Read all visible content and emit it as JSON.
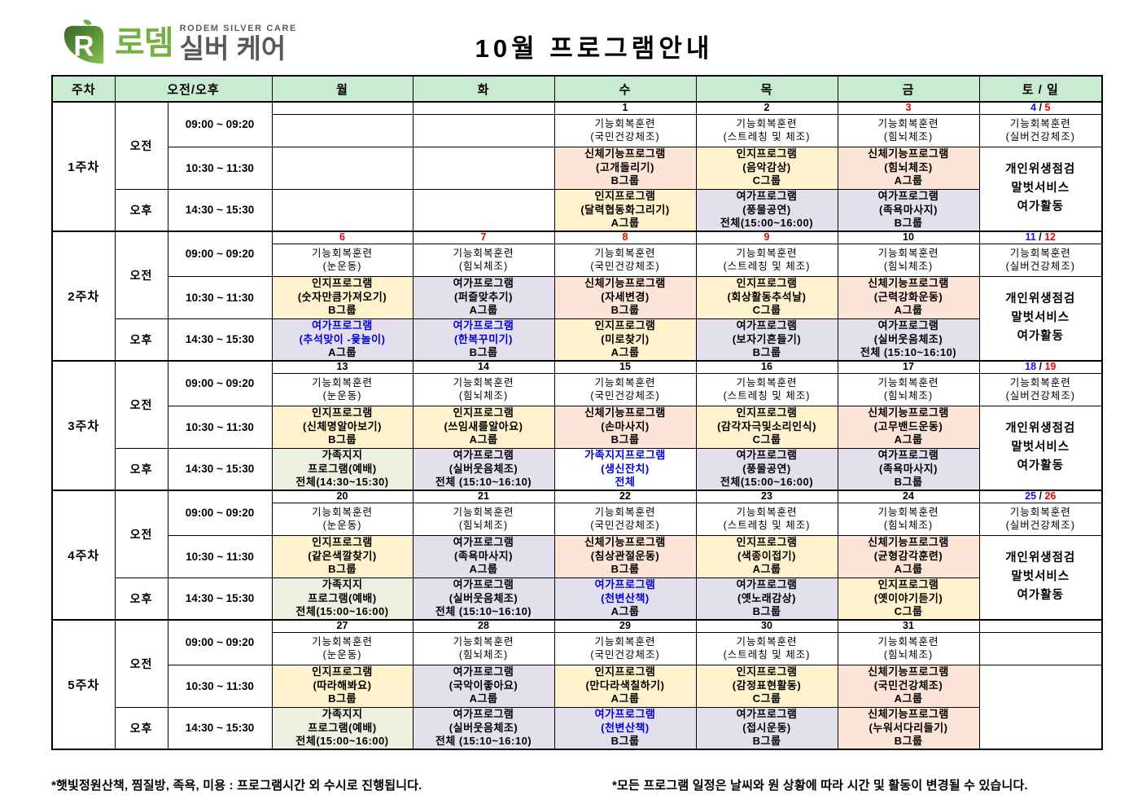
{
  "page": {
    "logo": {
      "kr_green": "로뎀",
      "kr_gray": "실버 케어",
      "en": "RODEM SILVER CARE"
    },
    "title": "10월 프로그램안내",
    "footnotes": {
      "left": "*햇빛정원산책, 찜질방, 족욕, 미용 : 프로그램시간 외 수시로 진행됩니다.",
      "right": "*모든 프로그램 일정은 날씨와 원 상황에 따라 시간 및 활동이 변경될 수 있습니다."
    }
  },
  "colors": {
    "header_bg": "#C8EBD2",
    "yellow": "#FFF2CC",
    "peach": "#FCE4D6",
    "purple": "#E4DFEC",
    "green": "#EBF1DE",
    "date_red": "#EE0000",
    "date_blue": "#1212EE",
    "program_blue": "#0000DD",
    "logo_green": "#76B043",
    "logo_gray": "#58595B"
  },
  "schedule": {
    "header": {
      "week": "주차",
      "ampm": "오전/오후",
      "days": [
        "월",
        "화",
        "수",
        "목",
        "금",
        "토 / 일"
      ]
    },
    "ampm": {
      "am": "오전",
      "pm": "오후"
    },
    "times": [
      "09:00 ~ 09:20",
      "10:30 ~ 11:30",
      "14:30 ~ 15:30"
    ],
    "weeks": [
      {
        "label": "1주차",
        "dates": [
          {
            "t": ""
          },
          {
            "t": ""
          },
          {
            "t": "1"
          },
          {
            "t": "2"
          },
          {
            "t": "3",
            "c": "red"
          }
        ],
        "weekend_date": {
          "sat": "4",
          "sun": "5"
        },
        "r1": [
          null,
          null,
          {
            "lines": [
              "기능회복훈련",
              "(국민건강체조)"
            ]
          },
          {
            "lines": [
              "기능회복훈련",
              "(스트레칭 및 체조)"
            ]
          },
          {
            "lines": [
              "기능회복훈련",
              "(힘뇌체조)"
            ]
          }
        ],
        "r2": [
          null,
          null,
          {
            "bg": "peach",
            "lines": [
              "신체기능프로그램",
              "(고개돌리기)",
              "B그룹"
            ]
          },
          {
            "bg": "yellow",
            "lines": [
              "인지프로그램",
              "(음악감상)",
              "C그룹"
            ]
          },
          {
            "bg": "peach",
            "lines": [
              "신체기능프로그램",
              "(힘뇌체조)",
              "A그룹"
            ]
          }
        ],
        "r3": [
          null,
          null,
          {
            "bg": "yellow",
            "lines": [
              "인지프로그램",
              "(달력협동화그리기)",
              "A그룹"
            ]
          },
          {
            "bg": "purple",
            "lines": [
              "여가프로그램",
              "(풍물공연)",
              "전체(15:00~16:00)"
            ]
          },
          {
            "bg": "purple",
            "lines": [
              "여가프로그램",
              "(족욕마사지)",
              "B그룹"
            ]
          }
        ],
        "weekend": {
          "ex": [
            "기능회복훈련",
            "(실버건강체조)"
          ],
          "merged": [
            "개인위생점검",
            "말벗서비스",
            "여가활동"
          ]
        }
      },
      {
        "label": "2주차",
        "dates": [
          {
            "t": "6",
            "c": "red"
          },
          {
            "t": "7",
            "c": "red"
          },
          {
            "t": "8",
            "c": "red"
          },
          {
            "t": "9",
            "c": "red"
          },
          {
            "t": "10"
          }
        ],
        "weekend_date": {
          "sat": "11",
          "sun": "12"
        },
        "r1": [
          {
            "lines": [
              "기능회복훈련",
              "(눈운동)"
            ]
          },
          {
            "lines": [
              "기능회복훈련",
              "(힘뇌체조)"
            ]
          },
          {
            "lines": [
              "기능회복훈련",
              "(국민건강체조)"
            ]
          },
          {
            "lines": [
              "기능회복훈련",
              "(스트레칭 및 체조)"
            ]
          },
          {
            "lines": [
              "기능회복훈련",
              "(힘뇌체조)"
            ]
          }
        ],
        "r2": [
          {
            "bg": "yellow",
            "lines": [
              "인지프로그램",
              "(숫자만큼가져오기)",
              "B그룹"
            ]
          },
          {
            "bg": "purple",
            "lines": [
              "여가프로그램",
              "(퍼즐맞추기)",
              "A그룹"
            ]
          },
          {
            "bg": "peach",
            "lines": [
              "신체기능프로그램",
              "(자세변경)",
              "B그룹"
            ]
          },
          {
            "bg": "yellow",
            "lines": [
              "인지프로그램",
              "(회상활동추석날)",
              "C그룹"
            ]
          },
          {
            "bg": "peach",
            "lines": [
              "신체기능프로그램",
              "(근력강화운동)",
              "A그룹"
            ]
          }
        ],
        "r3": [
          {
            "bg": "purple",
            "blue": [
              0,
              1
            ],
            "lines": [
              "여가프로그램",
              "(추석맞이 -윷놀이)",
              "A그룹"
            ]
          },
          {
            "bg": "purple",
            "blue": [
              0,
              1
            ],
            "lines": [
              "여가프로그램",
              "(한복꾸미기)",
              "B그룹"
            ]
          },
          {
            "bg": "yellow",
            "lines": [
              "인지프로그램",
              "(미로찾기)",
              "A그룹"
            ]
          },
          {
            "bg": "purple",
            "lines": [
              "여가프로그램",
              "(보자기흔들기)",
              "B그룹"
            ]
          },
          {
            "bg": "purple",
            "lines": [
              "여가프로그램",
              "(실버웃음체조)",
              "전체 (15:10~16:10)"
            ]
          }
        ],
        "weekend": {
          "ex": [
            "기능회복훈련",
            "(실버건강체조)"
          ],
          "merged": [
            "개인위생점검",
            "말벗서비스",
            "여가활동"
          ]
        }
      },
      {
        "label": "3주차",
        "dates": [
          {
            "t": "13"
          },
          {
            "t": "14"
          },
          {
            "t": "15"
          },
          {
            "t": "16"
          },
          {
            "t": "17"
          }
        ],
        "weekend_date": {
          "sat": "18",
          "sun": "19"
        },
        "r1": [
          {
            "lines": [
              "기능회복훈련",
              "(눈운동)"
            ]
          },
          {
            "lines": [
              "기능회복훈련",
              "(힘뇌체조)"
            ]
          },
          {
            "lines": [
              "기능회복훈련",
              "(국민건강체조)"
            ]
          },
          {
            "lines": [
              "기능회복훈련",
              "(스트레칭 및 체조)"
            ]
          },
          {
            "lines": [
              "기능회복훈련",
              "(힘뇌체조)"
            ]
          }
        ],
        "r2": [
          {
            "bg": "yellow",
            "lines": [
              "인지프로그램",
              "(신체명알아보기)",
              "B그룹"
            ]
          },
          {
            "bg": "yellow",
            "lines": [
              "인지프로그램",
              "(쓰임새를알아요)",
              "A그룹"
            ]
          },
          {
            "bg": "peach",
            "lines": [
              "신체기능프로그램",
              "(손마사지)",
              "B그룹"
            ]
          },
          {
            "bg": "yellow",
            "lines": [
              "인지프로그램",
              "(감각자극및소리인식)",
              "C그룹"
            ]
          },
          {
            "bg": "peach",
            "lines": [
              "신체기능프로그램",
              "(고무밴드운동)",
              "A그룹"
            ]
          }
        ],
        "r3": [
          {
            "bg": "green",
            "lines": [
              "가족지지",
              "프로그램(예배)",
              "전체(14:30~15:30)"
            ]
          },
          {
            "bg": "purple",
            "lines": [
              "여가프로그램",
              "(실버웃음체조)",
              "전체 (15:10~16:10)"
            ]
          },
          {
            "bg": "plain",
            "blue": [
              0,
              1,
              2
            ],
            "lines": [
              "가족지지프로그램",
              "(생신잔치)",
              "전체"
            ]
          },
          {
            "bg": "purple",
            "lines": [
              "여가프로그램",
              "(풍물공연)",
              "전체(15:00~16:00)"
            ]
          },
          {
            "bg": "purple",
            "lines": [
              "여가프로그램",
              "(족욕마사지)",
              "B그룹"
            ]
          }
        ],
        "weekend": {
          "ex": [
            "기능회복훈련",
            "(실버건강체조)"
          ],
          "merged": [
            "개인위생점검",
            "말벗서비스",
            "여가활동"
          ]
        }
      },
      {
        "label": "4주차",
        "dates": [
          {
            "t": "20"
          },
          {
            "t": "21"
          },
          {
            "t": "22"
          },
          {
            "t": "23"
          },
          {
            "t": "24"
          }
        ],
        "weekend_date": {
          "sat": "25",
          "sun": "26"
        },
        "r1": [
          {
            "lines": [
              "기능회복훈련",
              "(눈운동)"
            ]
          },
          {
            "lines": [
              "기능회복훈련",
              "(힘뇌체조)"
            ]
          },
          {
            "lines": [
              "기능회복훈련",
              "(국민건강체조)"
            ]
          },
          {
            "lines": [
              "기능회복훈련",
              "(스트레칭 및 체조)"
            ]
          },
          {
            "lines": [
              "기능회복훈련",
              "(힘뇌체조)"
            ]
          }
        ],
        "r2": [
          {
            "bg": "yellow",
            "lines": [
              "인지프로그램",
              "(같은색깔찾기)",
              "B그룹"
            ]
          },
          {
            "bg": "purple",
            "lines": [
              "여가프로그램",
              "(족욕마사지)",
              "A그룹"
            ]
          },
          {
            "bg": "peach",
            "lines": [
              "신체기능프로그램",
              "(침상관절운동)",
              "B그룹"
            ]
          },
          {
            "bg": "yellow",
            "lines": [
              "인지프로그램",
              "(색종이접기)",
              "A그룹"
            ]
          },
          {
            "bg": "peach",
            "lines": [
              "신체기능프로그램",
              "(균형감각훈련)",
              "A그룹"
            ]
          }
        ],
        "r3": [
          {
            "bg": "green",
            "lines": [
              "가족지지",
              "프로그램(예배)",
              "전체(15:00~16:00)"
            ]
          },
          {
            "bg": "purple",
            "lines": [
              "여가프로그램",
              "(실버웃음체조)",
              "전체 (15:10~16:10)"
            ]
          },
          {
            "bg": "purple",
            "blue": [
              0,
              1
            ],
            "lines": [
              "여가프로그램",
              "(천변산책)",
              "A그룹"
            ]
          },
          {
            "bg": "purple",
            "lines": [
              "여가프로그램",
              "(옛노래감상)",
              "B그룹"
            ]
          },
          {
            "bg": "yellow",
            "lines": [
              "인지프로그램",
              "(옛이야기듣기)",
              "C그룹"
            ]
          }
        ],
        "weekend": {
          "ex": [
            "기능회복훈련",
            "(실버건강체조)"
          ],
          "merged": [
            "개인위생점검",
            "말벗서비스",
            "여가활동"
          ]
        }
      },
      {
        "label": "5주차",
        "dates": [
          {
            "t": "27"
          },
          {
            "t": "28"
          },
          {
            "t": "29"
          },
          {
            "t": "30"
          },
          {
            "t": "31"
          }
        ],
        "weekend_date": null,
        "r1": [
          {
            "lines": [
              "기능회복훈련",
              "(눈운동)"
            ]
          },
          {
            "lines": [
              "기능회복훈련",
              "(힘뇌체조)"
            ]
          },
          {
            "lines": [
              "기능회복훈련",
              "(국민건강체조)"
            ]
          },
          {
            "lines": [
              "기능회복훈련",
              "(스트레칭 및 체조)"
            ]
          },
          {
            "lines": [
              "기능회복훈련",
              "(힘뇌체조)"
            ]
          }
        ],
        "r2": [
          {
            "bg": "yellow",
            "lines": [
              "인지프로그램",
              "(따라해봐요)",
              "B그룹"
            ]
          },
          {
            "bg": "purple",
            "lines": [
              "여가프로그램",
              "(국악이좋아요)",
              "A그룹"
            ]
          },
          {
            "bg": "yellow",
            "lines": [
              "인지프로그램",
              "(만다라색칠하기)",
              "A그룹"
            ]
          },
          {
            "bg": "yellow",
            "lines": [
              "인지프로그램",
              "(감정표현활동)",
              "C그룹"
            ]
          },
          {
            "bg": "peach",
            "lines": [
              "신체기능프로그램",
              "(국민건강체조)",
              "A그룹"
            ]
          }
        ],
        "r3": [
          {
            "bg": "green",
            "lines": [
              "가족지지",
              "프로그램(예배)",
              "전체(15:00~16:00)"
            ]
          },
          {
            "bg": "purple",
            "lines": [
              "여가프로그램",
              "(실버웃음체조)",
              "전체 (15:10~16:10)"
            ]
          },
          {
            "bg": "purple",
            "blue": [
              0,
              1
            ],
            "lines": [
              "여가프로그램",
              "(천변산책)",
              "B그룹"
            ]
          },
          {
            "bg": "purple",
            "lines": [
              "여가프로그램",
              "(접시운동)",
              "B그룹"
            ]
          },
          {
            "bg": "peach",
            "lines": [
              "신체기능프로그램",
              "(누워서다리들기)",
              "B그룹"
            ]
          }
        ],
        "weekend": {
          "ex": [],
          "merged": []
        }
      }
    ]
  }
}
